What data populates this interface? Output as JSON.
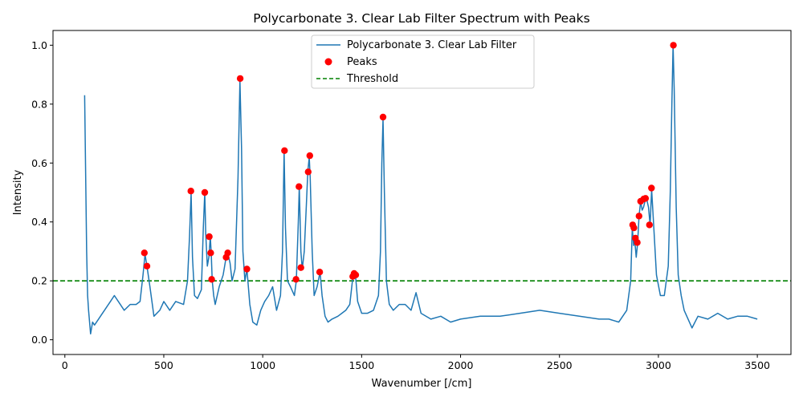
{
  "chart_data": {
    "type": "line",
    "title": "Polycarbonate 3. Clear Lab Filter Spectrum with Peaks",
    "xlabel": "Wavenumber [/cm]",
    "ylabel": "Intensity",
    "xlim": [
      -60,
      3670
    ],
    "ylim": [
      -0.05,
      1.05
    ],
    "xticks": [
      0,
      500,
      1000,
      1500,
      2000,
      2500,
      3000,
      3500
    ],
    "yticks": [
      0.0,
      0.2,
      0.4,
      0.6,
      0.8,
      1.0
    ],
    "xtick_labels": [
      "0",
      "500",
      "1000",
      "1500",
      "2000",
      "2500",
      "3000",
      "3500"
    ],
    "ytick_labels": [
      "0.0",
      "0.2",
      "0.4",
      "0.6",
      "0.8",
      "1.0"
    ],
    "grid": false,
    "legend_position": "top-center",
    "series": [
      {
        "name": "Polycarbonate 3. Clear Lab Filter",
        "kind": "line",
        "color": "#1f77b4",
        "x": [
          100,
          110,
          115,
          120,
          130,
          140,
          150,
          170,
          200,
          230,
          250,
          280,
          300,
          330,
          360,
          380,
          395,
          405,
          415,
          430,
          450,
          480,
          500,
          530,
          560,
          600,
          620,
          630,
          638,
          645,
          655,
          670,
          690,
          700,
          707,
          712,
          720,
          728,
          735,
          740,
          745,
          752,
          760,
          780,
          800,
          815,
          825,
          835,
          845,
          860,
          875,
          885,
          893,
          900,
          910,
          920,
          935,
          950,
          970,
          990,
          1010,
          1030,
          1050,
          1070,
          1090,
          1100,
          1108,
          1115,
          1125,
          1140,
          1160,
          1170,
          1180,
          1185,
          1193,
          1200,
          1210,
          1220,
          1228,
          1235,
          1240,
          1250,
          1260,
          1275,
          1290,
          1300,
          1315,
          1330,
          1350,
          1380,
          1400,
          1420,
          1440,
          1455,
          1462,
          1470,
          1480,
          1500,
          1530,
          1560,
          1585,
          1595,
          1602,
          1608,
          1615,
          1625,
          1640,
          1660,
          1690,
          1720,
          1750,
          1775,
          1800,
          1850,
          1900,
          1950,
          2000,
          2100,
          2200,
          2300,
          2400,
          2500,
          2600,
          2700,
          2750,
          2800,
          2840,
          2860,
          2868,
          2875,
          2880,
          2888,
          2895,
          2902,
          2910,
          2918,
          2925,
          2932,
          2940,
          2950,
          2958,
          2966,
          2975,
          2990,
          3010,
          3030,
          3050,
          3060,
          3068,
          3074,
          3080,
          3090,
          3100,
          3115,
          3130,
          3150,
          3170,
          3200,
          3250,
          3300,
          3350,
          3400,
          3450,
          3500
        ],
        "y": [
          0.83,
          0.3,
          0.15,
          0.1,
          0.02,
          0.06,
          0.05,
          0.07,
          0.1,
          0.13,
          0.15,
          0.12,
          0.1,
          0.12,
          0.12,
          0.13,
          0.22,
          0.29,
          0.25,
          0.18,
          0.08,
          0.1,
          0.13,
          0.1,
          0.13,
          0.12,
          0.2,
          0.35,
          0.5,
          0.28,
          0.15,
          0.14,
          0.17,
          0.38,
          0.5,
          0.36,
          0.25,
          0.28,
          0.35,
          0.29,
          0.2,
          0.15,
          0.12,
          0.18,
          0.22,
          0.28,
          0.29,
          0.26,
          0.2,
          0.24,
          0.55,
          0.88,
          0.65,
          0.3,
          0.2,
          0.24,
          0.12,
          0.06,
          0.05,
          0.1,
          0.13,
          0.15,
          0.18,
          0.1,
          0.15,
          0.3,
          0.64,
          0.38,
          0.2,
          0.18,
          0.15,
          0.2,
          0.4,
          0.52,
          0.3,
          0.24,
          0.3,
          0.45,
          0.57,
          0.62,
          0.55,
          0.3,
          0.15,
          0.18,
          0.23,
          0.15,
          0.08,
          0.06,
          0.07,
          0.08,
          0.09,
          0.1,
          0.12,
          0.21,
          0.22,
          0.21,
          0.13,
          0.09,
          0.09,
          0.1,
          0.15,
          0.3,
          0.6,
          0.75,
          0.5,
          0.2,
          0.12,
          0.1,
          0.12,
          0.12,
          0.1,
          0.16,
          0.09,
          0.07,
          0.08,
          0.06,
          0.07,
          0.08,
          0.08,
          0.09,
          0.1,
          0.09,
          0.08,
          0.07,
          0.07,
          0.06,
          0.1,
          0.2,
          0.38,
          0.32,
          0.34,
          0.28,
          0.33,
          0.42,
          0.47,
          0.44,
          0.45,
          0.47,
          0.48,
          0.45,
          0.39,
          0.51,
          0.4,
          0.22,
          0.15,
          0.15,
          0.25,
          0.5,
          0.8,
          1.0,
          0.85,
          0.45,
          0.22,
          0.15,
          0.1,
          0.07,
          0.04,
          0.08,
          0.07,
          0.09,
          0.07,
          0.08,
          0.08,
          0.07
        ]
      },
      {
        "name": "Peaks",
        "kind": "scatter",
        "color": "#ff0000",
        "x": [
          402,
          415,
          637,
          707,
          730,
          737,
          742,
          815,
          823,
          886,
          920,
          1110,
          1168,
          1183,
          1193,
          1230,
          1238,
          1288,
          1455,
          1462,
          1470,
          1608,
          2870,
          2876,
          2884,
          2893,
          2902,
          2910,
          2926,
          2935,
          2955,
          2965,
          3076
        ],
        "y": [
          0.295,
          0.25,
          0.505,
          0.5,
          0.35,
          0.295,
          0.205,
          0.28,
          0.295,
          0.887,
          0.24,
          0.642,
          0.205,
          0.52,
          0.245,
          0.57,
          0.625,
          0.23,
          0.215,
          0.225,
          0.22,
          0.756,
          0.39,
          0.38,
          0.345,
          0.33,
          0.42,
          0.47,
          0.478,
          0.48,
          0.39,
          0.515,
          1.0
        ]
      },
      {
        "name": "Threshold",
        "kind": "hline",
        "color": "#008000",
        "value": 0.2
      }
    ]
  }
}
